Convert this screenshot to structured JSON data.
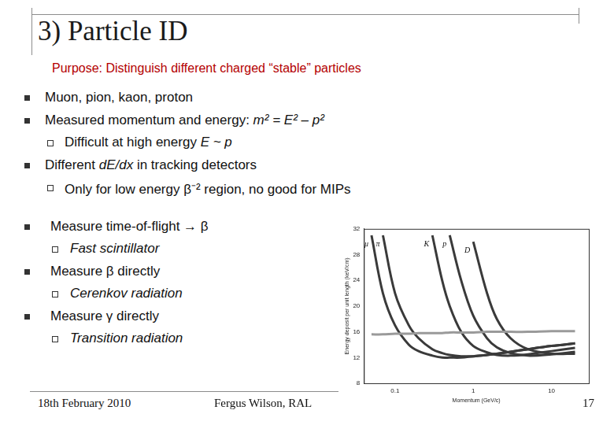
{
  "slide": {
    "title": "3) Particle ID",
    "subtitle": "Purpose: Distinguish different charged “stable” particles",
    "bullets": [
      {
        "runs": [
          {
            "text": "Muon, pion, kaon, proton"
          }
        ],
        "sub": []
      },
      {
        "runs": [
          {
            "text": "Measured momentum and energy: "
          },
          {
            "text": "m² = E² – p²",
            "italic": true
          }
        ],
        "sub": [
          [
            {
              "text": "Difficult at high energy "
            },
            {
              "text": "E ~ p",
              "italic": true
            }
          ]
        ]
      },
      {
        "runs": [
          {
            "text": "Different "
          },
          {
            "text": "dE/dx",
            "italic": true
          },
          {
            "text": " in tracking detectors"
          }
        ],
        "sub": [
          [
            {
              "text": "Only for low energy β⁻² region, no good for MIPs"
            }
          ]
        ]
      },
      {
        "runs": [
          {
            "text": "Measure time-of-flight → β"
          }
        ],
        "sub": [
          [
            {
              "text": "Fast scintillator",
              "italic": true
            }
          ]
        ]
      },
      {
        "runs": [
          {
            "text": "Measure β directly"
          }
        ],
        "sub": [
          [
            {
              "text": "Cerenkov radiation",
              "italic": true
            }
          ]
        ]
      },
      {
        "runs": [
          {
            "text": "Measure γ directly"
          }
        ],
        "sub": [
          [
            {
              "text": "Transition radiation",
              "italic": true
            }
          ]
        ]
      }
    ],
    "footer": {
      "date": "18th February 2010",
      "author": "Fergus Wilson, RAL",
      "page": "17"
    }
  },
  "chart_data": {
    "type": "line",
    "log": "x",
    "x_label": "Momentum (GeV/c)",
    "y_label": "Energy deposit per unit length (keV/cm)",
    "x": [
      0.05,
      0.07,
      0.1,
      0.15,
      0.2,
      0.3,
      0.4,
      0.5,
      0.7,
      1,
      1.5,
      2,
      3,
      5,
      10,
      20
    ],
    "series": [
      {
        "values": [
          15.6,
          15.6,
          15.7,
          15.7,
          15.8,
          15.8,
          15.8,
          15.9,
          15.9,
          15.9,
          16,
          16,
          16,
          16,
          16.1,
          16.1
        ],
        "color": "#9a9a9a"
      },
      {
        "name": "μ",
        "values": [
          31,
          22,
          17,
          14,
          13,
          12.3,
          12,
          12,
          12,
          12.2,
          12.4,
          12.6,
          12.9,
          13.3,
          13.8,
          14.2
        ],
        "color": "#3a3a3a"
      },
      {
        "name": "π",
        "values": [
          null,
          31,
          22,
          17,
          15,
          13.3,
          12.7,
          12.4,
          12.2,
          12.2,
          12.4,
          12.6,
          12.9,
          13.3,
          13.8,
          14.2
        ],
        "color": "#3a3a3a"
      },
      {
        "name": "K",
        "values": [
          null,
          null,
          null,
          null,
          null,
          31,
          24,
          20,
          16,
          13.8,
          12.8,
          12.4,
          12.3,
          12.5,
          13,
          13.5
        ],
        "color": "#3a3a3a"
      },
      {
        "name": "p",
        "values": [
          null,
          null,
          null,
          null,
          null,
          null,
          null,
          31,
          24,
          18.5,
          15,
          13.6,
          12.7,
          12.3,
          12.5,
          12.9
        ],
        "color": "#3a3a3a"
      },
      {
        "name": "D",
        "values": [
          null,
          null,
          null,
          null,
          null,
          null,
          null,
          null,
          null,
          30,
          22,
          18,
          15,
          13.3,
          12.6,
          12.6
        ],
        "color": "#3a3a3a"
      }
    ],
    "xlim": [
      0.04,
      30
    ],
    "xticks": [
      0.1,
      1,
      10
    ],
    "ylim": [
      8,
      32
    ],
    "yticks": [
      8,
      12,
      16,
      20,
      24,
      28,
      32
    ],
    "grid": false
  }
}
